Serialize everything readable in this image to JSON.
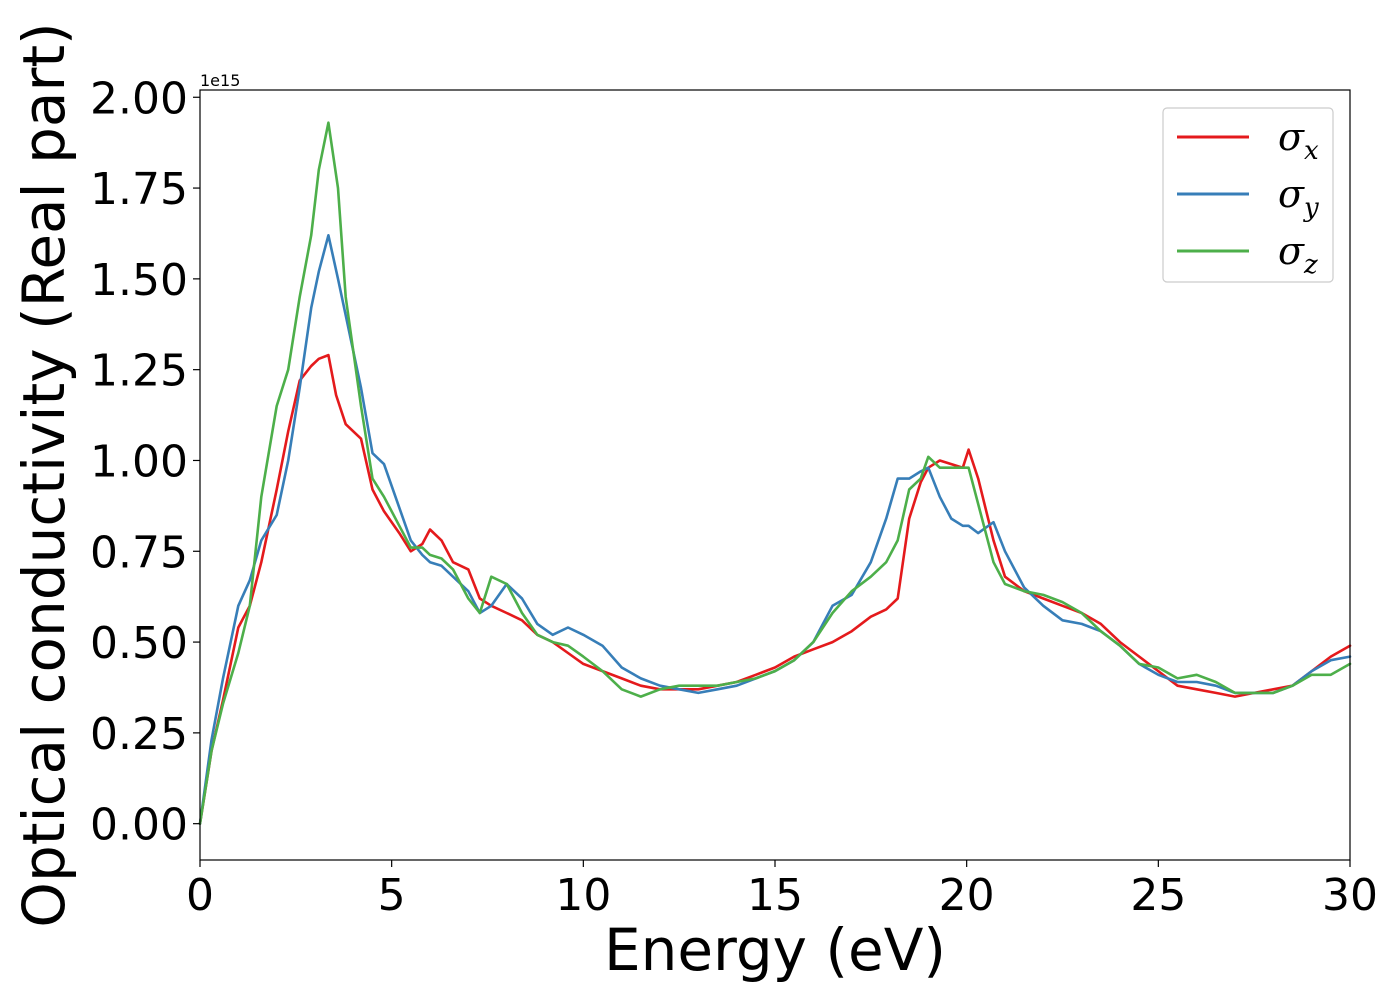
{
  "chart_data": {
    "type": "line",
    "title": "",
    "xlabel": "Energy (eV)",
    "ylabel": "Optical conductivity (Real part)",
    "y_offset_text": "1e15",
    "xlim": [
      0,
      30
    ],
    "ylim": [
      -0.1,
      2.02
    ],
    "xticks": [
      0,
      5,
      10,
      15,
      20,
      25,
      30
    ],
    "xtick_labels": [
      "0",
      "5",
      "10",
      "15",
      "20",
      "25",
      "30"
    ],
    "yticks": [
      0.0,
      0.25,
      0.5,
      0.75,
      1.0,
      1.25,
      1.5,
      1.75,
      2.0
    ],
    "ytick_labels": [
      "0.00",
      "0.25",
      "0.50",
      "0.75",
      "1.00",
      "1.25",
      "1.50",
      "1.75",
      "2.00"
    ],
    "grid": false,
    "legend_position": "top-right",
    "series": [
      {
        "name": "σx",
        "base": "σ",
        "sub": "x",
        "color": "#e41a1c",
        "x": [
          0,
          0.3,
          0.6,
          1,
          1.3,
          1.6,
          2,
          2.3,
          2.6,
          2.9,
          3.1,
          3.35,
          3.55,
          3.8,
          4.2,
          4.5,
          4.8,
          5.2,
          5.5,
          5.8,
          6,
          6.3,
          6.6,
          7,
          7.3,
          7.6,
          8,
          8.4,
          8.8,
          9.2,
          9.6,
          10,
          10.5,
          11,
          11.5,
          12,
          12.5,
          13,
          13.5,
          14,
          14.5,
          15,
          15.5,
          16,
          16.5,
          17,
          17.5,
          17.9,
          18.2,
          18.5,
          18.8,
          19,
          19.3,
          19.6,
          19.9,
          20.05,
          20.3,
          20.7,
          21,
          21.5,
          22,
          22.5,
          23,
          23.5,
          24,
          24.5,
          25,
          25.5,
          26,
          26.5,
          27,
          27.5,
          28,
          28.5,
          29,
          29.5,
          30
        ],
        "y": [
          0,
          0.2,
          0.34,
          0.54,
          0.6,
          0.72,
          0.92,
          1.08,
          1.22,
          1.26,
          1.28,
          1.29,
          1.18,
          1.1,
          1.06,
          0.92,
          0.86,
          0.8,
          0.75,
          0.77,
          0.81,
          0.78,
          0.72,
          0.7,
          0.62,
          0.6,
          0.58,
          0.56,
          0.52,
          0.5,
          0.47,
          0.44,
          0.42,
          0.4,
          0.38,
          0.37,
          0.37,
          0.37,
          0.38,
          0.39,
          0.41,
          0.43,
          0.46,
          0.48,
          0.5,
          0.53,
          0.57,
          0.59,
          0.62,
          0.84,
          0.94,
          0.98,
          1.0,
          0.99,
          0.98,
          1.03,
          0.95,
          0.78,
          0.68,
          0.64,
          0.62,
          0.6,
          0.58,
          0.55,
          0.5,
          0.46,
          0.42,
          0.38,
          0.37,
          0.36,
          0.35,
          0.36,
          0.37,
          0.38,
          0.42,
          0.46,
          0.49
        ]
      },
      {
        "name": "σy",
        "base": "σ",
        "sub": "y",
        "color": "#377eb8",
        "x": [
          0,
          0.3,
          0.6,
          1,
          1.3,
          1.6,
          2,
          2.3,
          2.6,
          2.9,
          3.1,
          3.35,
          3.6,
          3.8,
          4.2,
          4.5,
          4.8,
          5.2,
          5.5,
          5.8,
          6,
          6.3,
          6.6,
          7,
          7.3,
          7.6,
          8,
          8.4,
          8.8,
          9.2,
          9.6,
          10,
          10.5,
          11,
          11.5,
          12,
          12.5,
          13,
          13.5,
          14,
          14.5,
          15,
          15.5,
          16,
          16.5,
          17,
          17.5,
          17.9,
          18.2,
          18.5,
          18.8,
          19,
          19.3,
          19.6,
          19.9,
          20.05,
          20.3,
          20.7,
          21,
          21.5,
          22,
          22.5,
          23,
          23.5,
          24,
          24.5,
          25,
          25.5,
          26,
          26.5,
          27,
          27.5,
          28,
          28.5,
          29,
          29.5,
          30
        ],
        "y": [
          0,
          0.23,
          0.4,
          0.6,
          0.67,
          0.78,
          0.85,
          1.0,
          1.2,
          1.42,
          1.52,
          1.62,
          1.5,
          1.4,
          1.2,
          1.02,
          0.99,
          0.87,
          0.78,
          0.74,
          0.72,
          0.71,
          0.68,
          0.64,
          0.58,
          0.6,
          0.66,
          0.62,
          0.55,
          0.52,
          0.54,
          0.52,
          0.49,
          0.43,
          0.4,
          0.38,
          0.37,
          0.36,
          0.37,
          0.38,
          0.4,
          0.42,
          0.45,
          0.5,
          0.6,
          0.63,
          0.72,
          0.84,
          0.95,
          0.95,
          0.97,
          0.98,
          0.9,
          0.84,
          0.82,
          0.82,
          0.8,
          0.83,
          0.75,
          0.65,
          0.6,
          0.56,
          0.55,
          0.53,
          0.49,
          0.44,
          0.41,
          0.39,
          0.39,
          0.38,
          0.36,
          0.36,
          0.36,
          0.38,
          0.42,
          0.45,
          0.46
        ]
      },
      {
        "name": "σz",
        "base": "σ",
        "sub": "z",
        "color": "#4daf4a",
        "x": [
          0,
          0.3,
          0.6,
          1,
          1.3,
          1.6,
          2,
          2.3,
          2.6,
          2.9,
          3.1,
          3.35,
          3.6,
          3.8,
          4.2,
          4.5,
          4.8,
          5.2,
          5.5,
          5.8,
          6,
          6.3,
          6.6,
          7,
          7.3,
          7.6,
          8,
          8.4,
          8.8,
          9.2,
          9.6,
          10,
          10.5,
          11,
          11.5,
          12,
          12.5,
          13,
          13.5,
          14,
          14.5,
          15,
          15.5,
          16,
          16.5,
          17,
          17.5,
          17.9,
          18.2,
          18.5,
          18.8,
          19,
          19.3,
          19.6,
          19.9,
          20.05,
          20.3,
          20.7,
          21,
          21.5,
          22,
          22.5,
          23,
          23.5,
          24,
          24.5,
          25,
          25.5,
          26,
          26.5,
          27,
          27.5,
          28,
          28.5,
          29,
          29.5,
          30
        ],
        "y": [
          0,
          0.2,
          0.33,
          0.47,
          0.6,
          0.9,
          1.15,
          1.25,
          1.45,
          1.62,
          1.8,
          1.93,
          1.75,
          1.45,
          1.15,
          0.95,
          0.9,
          0.82,
          0.76,
          0.76,
          0.74,
          0.73,
          0.7,
          0.62,
          0.58,
          0.68,
          0.66,
          0.58,
          0.52,
          0.5,
          0.49,
          0.46,
          0.42,
          0.37,
          0.35,
          0.37,
          0.38,
          0.38,
          0.38,
          0.39,
          0.4,
          0.42,
          0.45,
          0.5,
          0.58,
          0.64,
          0.68,
          0.72,
          0.78,
          0.92,
          0.95,
          1.01,
          0.98,
          0.98,
          0.98,
          0.98,
          0.88,
          0.72,
          0.66,
          0.64,
          0.63,
          0.61,
          0.58,
          0.53,
          0.49,
          0.44,
          0.43,
          0.4,
          0.41,
          0.39,
          0.36,
          0.36,
          0.36,
          0.38,
          0.41,
          0.41,
          0.44
        ]
      }
    ]
  }
}
